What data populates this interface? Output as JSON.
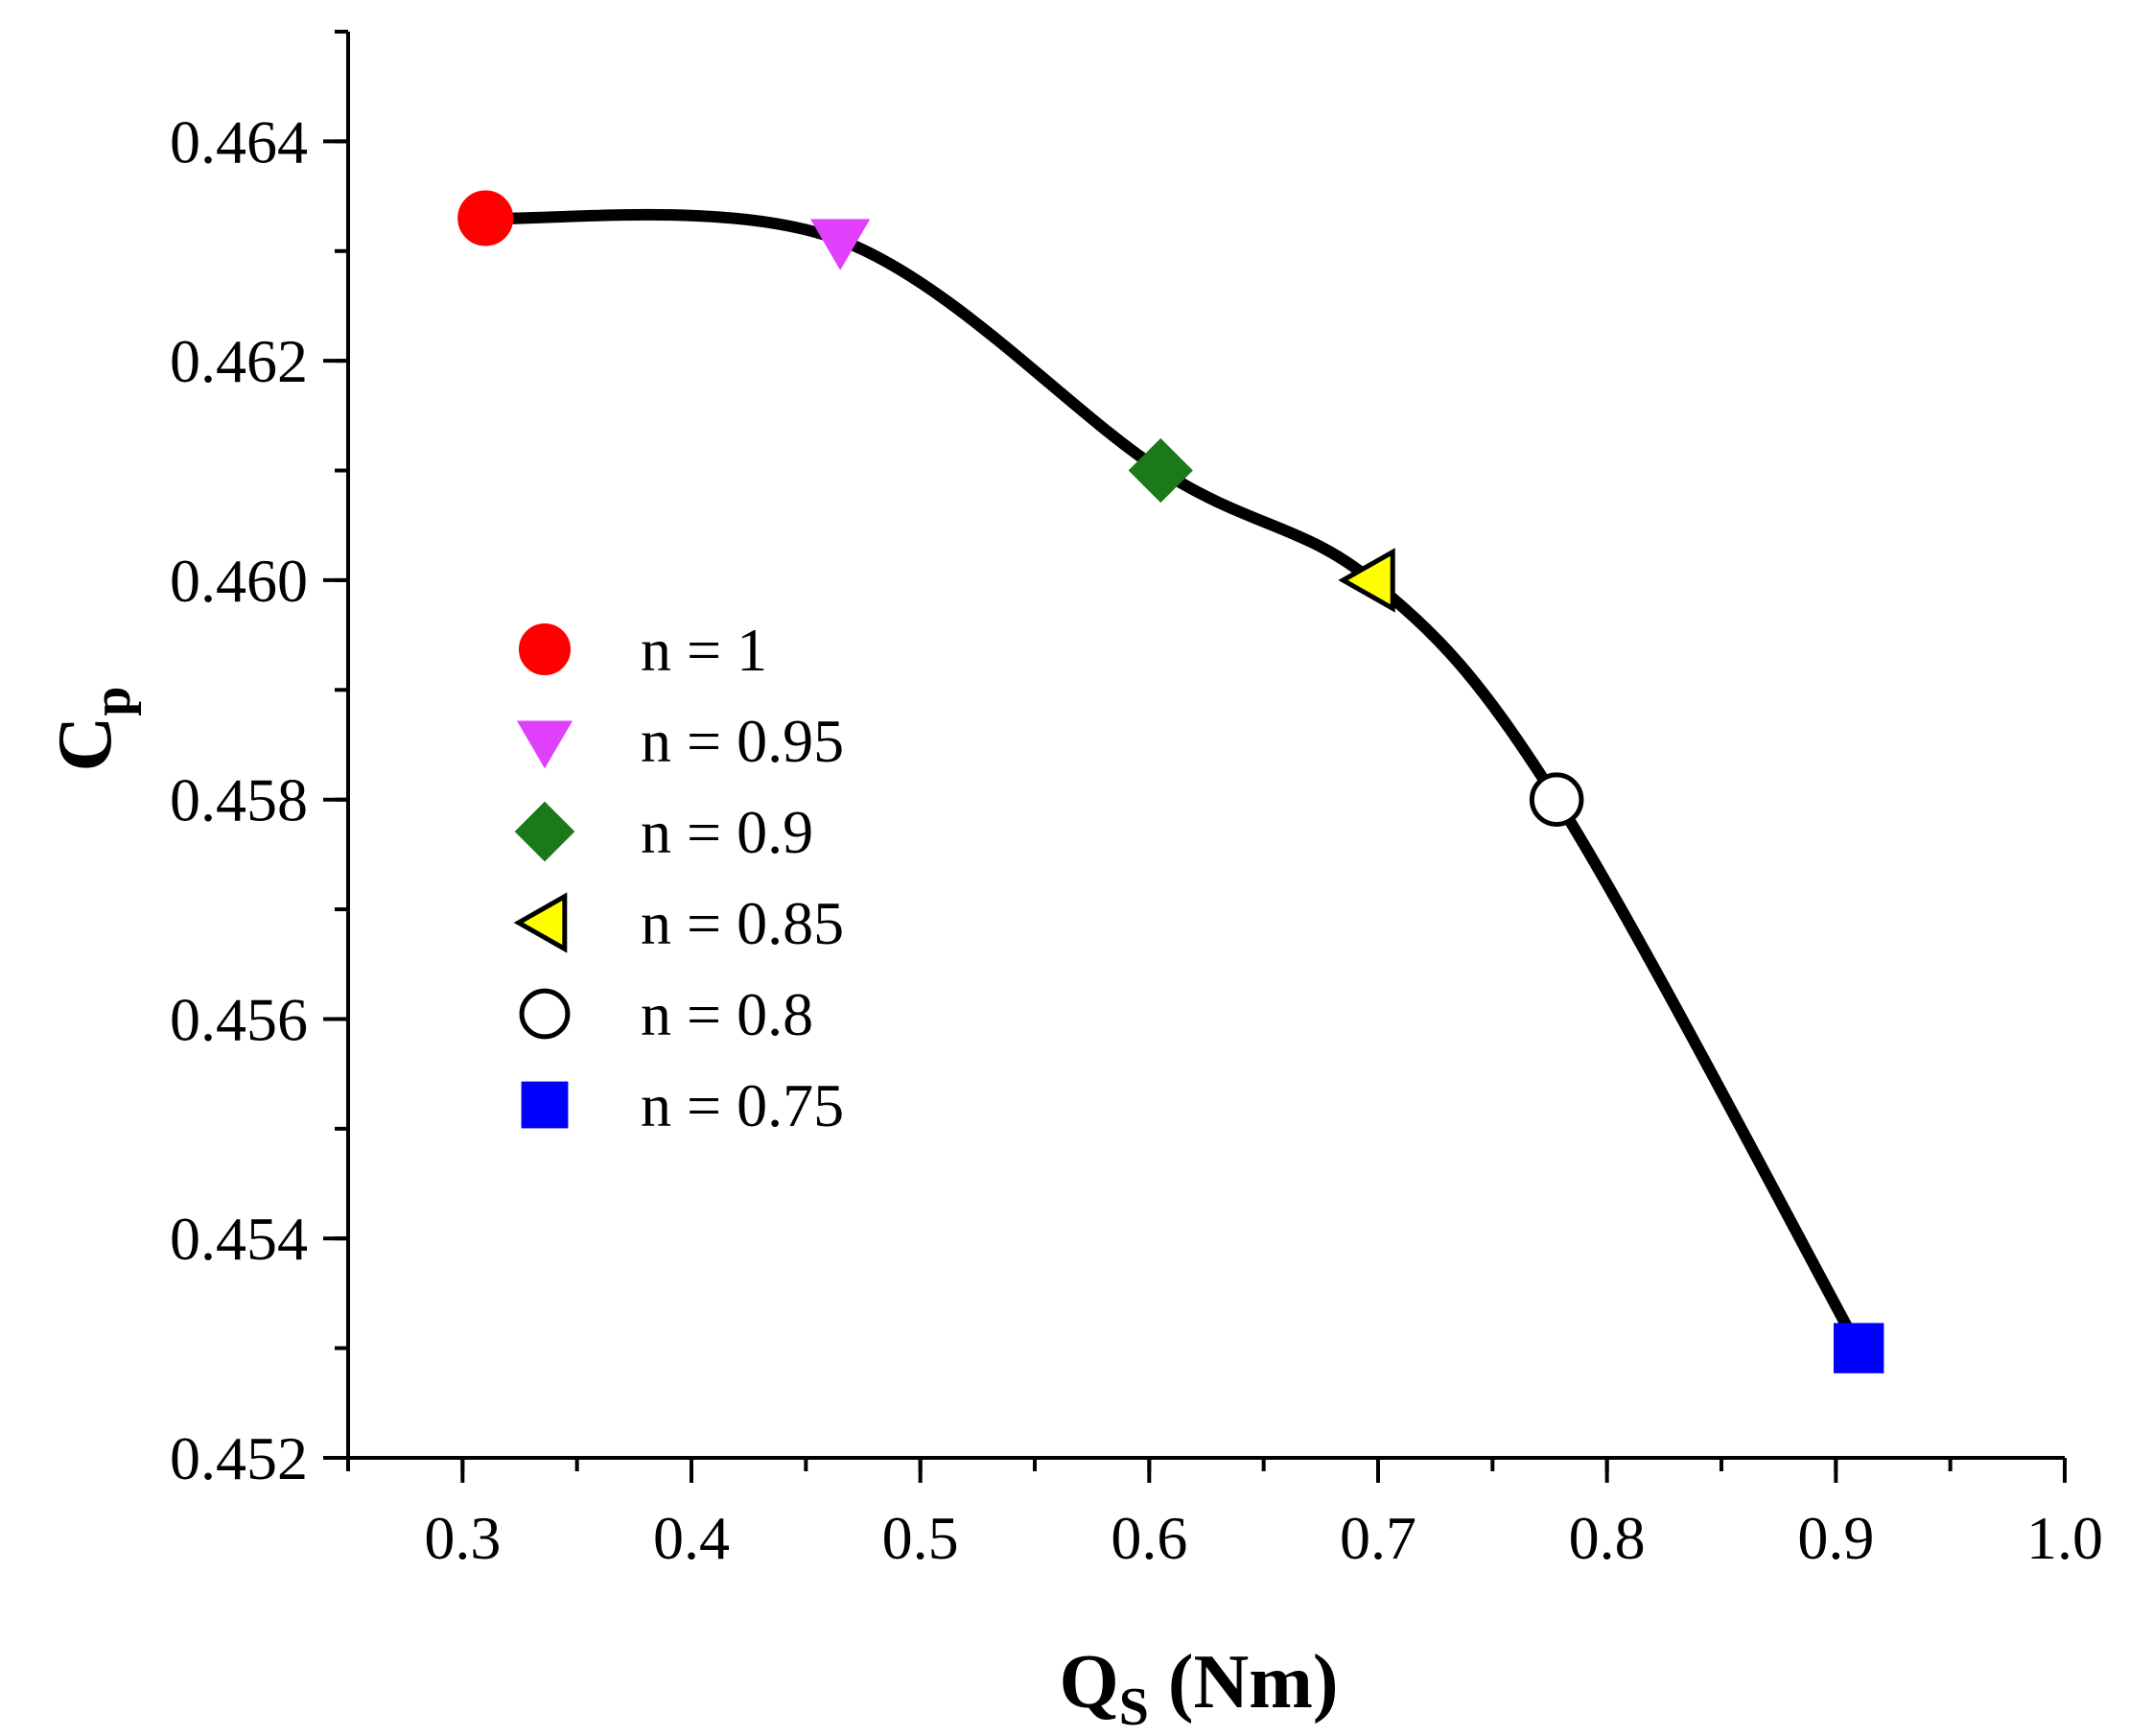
{
  "chart_data": {
    "type": "line",
    "title": "",
    "xlabel": {
      "main": "Q",
      "sub": "S",
      "unit": " (Nm)"
    },
    "ylabel": {
      "main": "C",
      "sub": "p"
    },
    "xlim": [
      0.25,
      1.0
    ],
    "ylim": [
      0.452,
      0.465
    ],
    "x_ticks": [
      0.3,
      0.4,
      0.5,
      0.6,
      0.7,
      0.8,
      0.9,
      1.0
    ],
    "x_tick_labels": [
      "0.3",
      "0.4",
      "0.5",
      "0.6",
      "0.7",
      "0.8",
      "0.9",
      "1.0"
    ],
    "y_ticks": [
      0.452,
      0.454,
      0.456,
      0.458,
      0.46,
      0.462,
      0.464
    ],
    "y_tick_labels": [
      "0.452",
      "0.454",
      "0.456",
      "0.458",
      "0.460",
      "0.462",
      "0.464"
    ],
    "grid": false,
    "legend_position": "center-left",
    "line_color": "#000000",
    "series": [
      {
        "name": "n = 1",
        "x": 0.31,
        "y": 0.4633,
        "marker": "circle",
        "color": "#ff0000",
        "edge": "#ff0000"
      },
      {
        "name": "n = 0.95",
        "x": 0.465,
        "y": 0.4631,
        "marker": "triangle-down",
        "color": "#e040fb",
        "edge": "#e040fb"
      },
      {
        "name": "n = 0.9",
        "x": 0.605,
        "y": 0.461,
        "marker": "diamond",
        "color": "#1a7a1a",
        "edge": "#1a7a1a"
      },
      {
        "name": "n = 0.85",
        "x": 0.697,
        "y": 0.46,
        "marker": "triangle-left",
        "color": "#ffff00",
        "edge": "#000000"
      },
      {
        "name": "n = 0.8",
        "x": 0.778,
        "y": 0.458,
        "marker": "circle-open",
        "color": "#ffffff",
        "edge": "#000000"
      },
      {
        "name": "n = 0.75",
        "x": 0.91,
        "y": 0.453,
        "marker": "square",
        "color": "#0000ff",
        "edge": "#0000ff"
      }
    ]
  }
}
